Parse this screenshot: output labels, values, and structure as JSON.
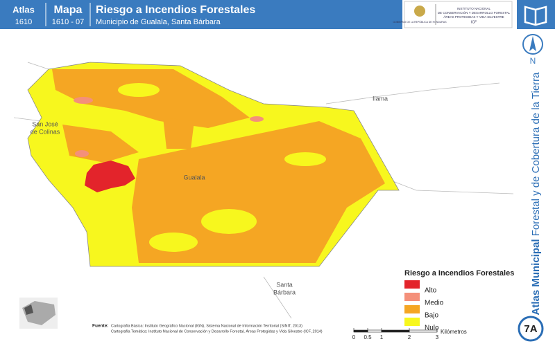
{
  "header": {
    "atlas_label": "Atlas",
    "atlas_number": "1610",
    "mapa_label": "Mapa",
    "mapa_number": "1610 - 07",
    "title": "Riesgo a Incendios Forestales",
    "subtitle": "Municipio de Gualala, Santa Bárbara"
  },
  "logos": {
    "government": "GOBIERNO DE LA REPÚBLICA DE HONDURAS",
    "institute": [
      "INSTITUTO NACIONAL",
      "DE CONSERVACIÓN Y DESARROLLO FORESTAL",
      "ÁREAS PROTEGIDAS Y VIDA SILVESTRE"
    ],
    "acronym": "ICF"
  },
  "places": [
    {
      "lines": [
        "San José",
        "de Colinas"
      ]
    },
    {
      "lines": [
        "Ilama"
      ]
    },
    {
      "lines": [
        "Gualala"
      ]
    },
    {
      "lines": [
        "Santa",
        "Bárbara"
      ]
    }
  ],
  "legend": {
    "title": "Riesgo a Incendios Forestales",
    "items": [
      {
        "label": "Alto",
        "color": "#e3242b"
      },
      {
        "label": "Medio",
        "color": "#f4907a"
      },
      {
        "label": "Bajo",
        "color": "#f5a623"
      },
      {
        "label": "Nulo",
        "color": "#f7f71e"
      }
    ]
  },
  "scale": {
    "ticks": [
      0,
      0.5,
      1,
      2,
      3
    ],
    "unit": "Kilómetros"
  },
  "sources": {
    "label": "Fuente:",
    "lines": [
      "Cartografía Básica: Instituto Geográfico Nacional (IGN), Sistema Nacional de Información Territorial (SINIT, 2013)",
      "Cartografía Temática: Instituto Nacional de Conservación y Desarrollo Forestal, Áreas Protegidas y Vida Silvestre (ICF, 2014)"
    ]
  },
  "side": {
    "bold": "Atlas Municipal",
    "rest": " Forestal y de Cobertura de la Tierra"
  },
  "north": "N",
  "badge": "7A"
}
